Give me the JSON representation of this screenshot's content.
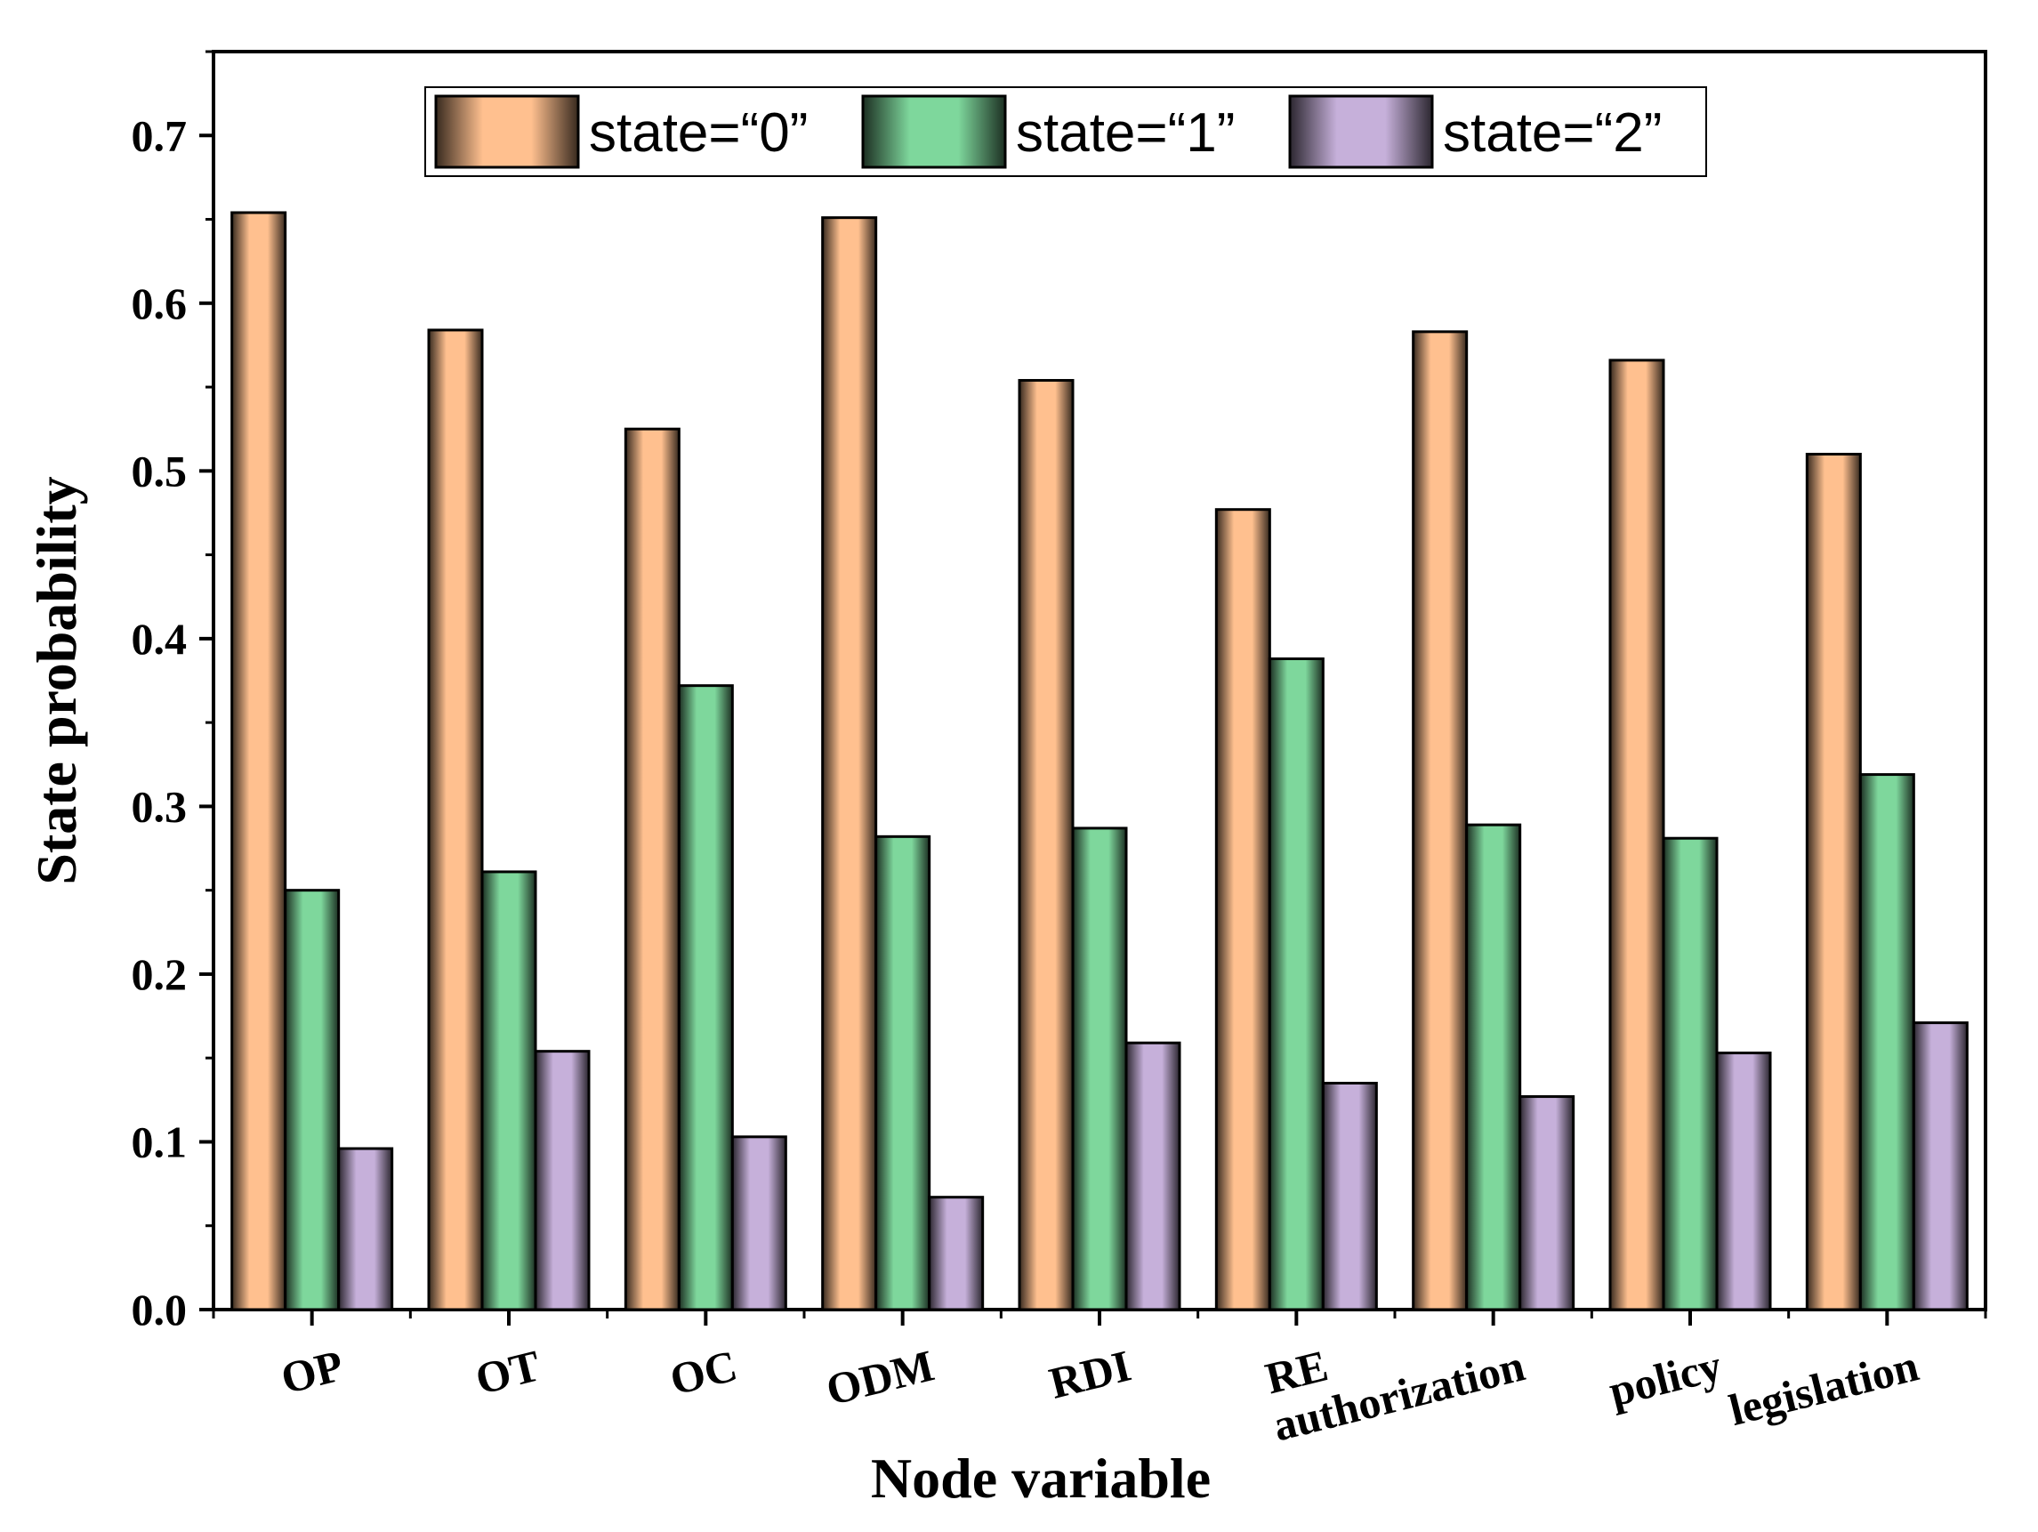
{
  "chart_data": {
    "type": "bar",
    "xlabel": "Node variable",
    "ylabel": "State probability",
    "ylim": [
      0,
      0.75
    ],
    "yticks": [
      "0.0",
      "0.1",
      "0.2",
      "0.3",
      "0.4",
      "0.5",
      "0.6",
      "0.7"
    ],
    "categories": [
      "OP",
      "OT",
      "OC",
      "ODM",
      "RDI",
      "RE",
      "authorization",
      "policy",
      "legislation"
    ],
    "series": [
      {
        "name": "state=“0”",
        "color": "#FFC08F",
        "values": [
          0.654,
          0.584,
          0.525,
          0.651,
          0.554,
          0.477,
          0.583,
          0.566,
          0.51
        ]
      },
      {
        "name": "state=“1”",
        "color": "#7ED79C",
        "values": [
          0.25,
          0.261,
          0.372,
          0.282,
          0.287,
          0.388,
          0.289,
          0.281,
          0.319
        ]
      },
      {
        "name": "state=“2”",
        "color": "#C6B0DA",
        "values": [
          0.096,
          0.154,
          0.103,
          0.067,
          0.159,
          0.135,
          0.127,
          0.153,
          0.171
        ]
      }
    ],
    "legend_position": "top-center"
  }
}
